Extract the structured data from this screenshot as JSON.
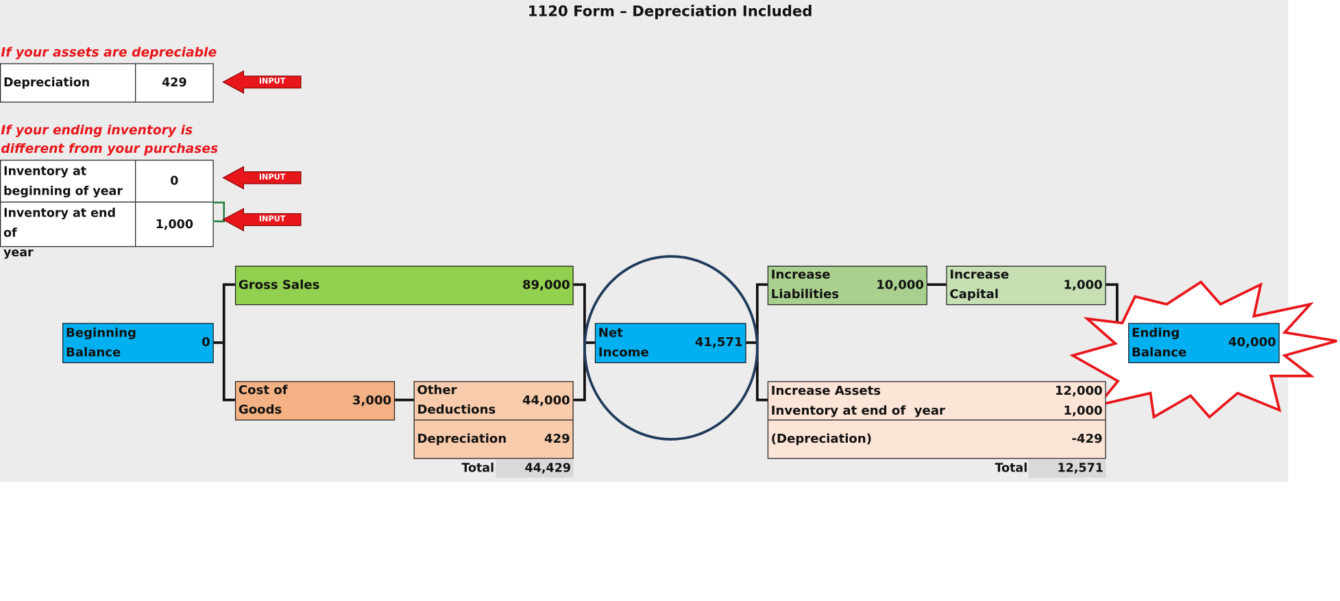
{
  "title": "1120 Form – Depreciation Included",
  "notes": {
    "depreciable": "If your assets are depreciable",
    "inventory_line1": "If your ending inventory is",
    "inventory_line2": "different from your purchases"
  },
  "inputs": {
    "depreciation": {
      "label": "Depreciation",
      "value": "429"
    },
    "inv_begin": {
      "label_line1": "Inventory at",
      "label_line2": "beginning of year",
      "value": "0"
    },
    "inv_end": {
      "label_line1": "Inventory at end of",
      "label_line2": "year",
      "value": "1,000"
    },
    "arrow_label": "INPUT"
  },
  "flow": {
    "beginning_balance": {
      "label_line1": "Beginning",
      "label_line2": "Balance",
      "value": "0"
    },
    "gross_sales": {
      "label": "Gross Sales",
      "value": "89,000"
    },
    "cost_of_goods": {
      "label_line1": "Cost of",
      "label_line2": "Goods",
      "value": "3,000"
    },
    "other_deductions": {
      "label_line1": "Other",
      "label_line2": "Deductions",
      "value": "44,000"
    },
    "depreciation": {
      "label": "Depreciation",
      "value": "429"
    },
    "deductions_total": {
      "label": "Total",
      "value": "44,429"
    },
    "net_income": {
      "label_line1": "Net",
      "label_line2": "Income",
      "value": "41,571"
    },
    "increase_liabilities": {
      "label_line1": "Increase",
      "label_line2": "Liabilities",
      "value": "10,000"
    },
    "increase_capital": {
      "label_line1": "Increase",
      "label_line2": "Capital",
      "value": "1,000"
    },
    "increase_assets": {
      "label": "Increase Assets",
      "value": "12,000"
    },
    "inventory_end": {
      "label": "Inventory at end of  year",
      "value": "1,000"
    },
    "depreciation_neg": {
      "label": "(Depreciation)",
      "value": "-429"
    },
    "assets_total": {
      "label": "Total",
      "value": "12,571"
    },
    "ending_balance": {
      "label_line1": "Ending",
      "label_line2": "Balance",
      "value": "40,000"
    }
  },
  "colors": {
    "gross_sales": "#92d050",
    "increase_liabilities": "#a9d08e",
    "increase_capital": "#c6e0b4",
    "balance_boxes": "#00b0f0",
    "cost_of_goods": "#f4b183",
    "deductions": "#f8cbad",
    "assets": "#fce4d6",
    "input_arrow": "#e8161b",
    "circle": "#1f3a5a"
  }
}
